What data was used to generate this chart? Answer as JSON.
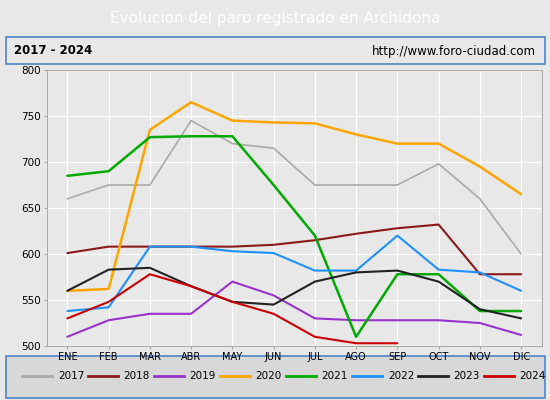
{
  "title": "Evolucion del paro registrado en Archidona",
  "subtitle_left": "2017 - 2024",
  "subtitle_right": "http://www.foro-ciudad.com",
  "title_bg_color": "#4a86c8",
  "title_text_color": "#ffffff",
  "months": [
    "ENE",
    "FEB",
    "MAR",
    "ABR",
    "MAY",
    "JUN",
    "JUL",
    "AGO",
    "SEP",
    "OCT",
    "NOV",
    "DIC"
  ],
  "ylim": [
    500,
    800
  ],
  "yticks": [
    500,
    550,
    600,
    650,
    700,
    750,
    800
  ],
  "series": {
    "2017": {
      "color": "#aaaaaa",
      "linewidth": 1.2,
      "values": [
        660,
        675,
        675,
        745,
        720,
        715,
        675,
        675,
        675,
        698,
        660,
        600
      ]
    },
    "2018": {
      "color": "#8b1a1a",
      "linewidth": 1.5,
      "values": [
        601,
        608,
        608,
        608,
        608,
        610,
        615,
        622,
        628,
        632,
        578,
        578
      ]
    },
    "2019": {
      "color": "#9932cc",
      "linewidth": 1.5,
      "values": [
        510,
        528,
        535,
        535,
        570,
        555,
        530,
        528,
        528,
        528,
        525,
        512
      ]
    },
    "2020": {
      "color": "#ffa500",
      "linewidth": 1.8,
      "values": [
        560,
        562,
        735,
        765,
        745,
        743,
        742,
        730,
        720,
        720,
        695,
        665
      ]
    },
    "2021": {
      "color": "#00aa00",
      "linewidth": 1.8,
      "values": [
        685,
        690,
        727,
        728,
        728,
        675,
        620,
        510,
        578,
        578,
        538,
        538
      ]
    },
    "2022": {
      "color": "#1e90ff",
      "linewidth": 1.5,
      "values": [
        538,
        542,
        608,
        608,
        603,
        601,
        582,
        582,
        620,
        583,
        580,
        560
      ]
    },
    "2023": {
      "color": "#222222",
      "linewidth": 1.5,
      "values": [
        560,
        583,
        585,
        565,
        548,
        545,
        570,
        580,
        582,
        570,
        540,
        530
      ]
    },
    "2024": {
      "color": "#cc0000",
      "linewidth": 1.5,
      "values": [
        530,
        548,
        578,
        565,
        548,
        535,
        510,
        503,
        503,
        null,
        null,
        null
      ]
    }
  },
  "legend_order": [
    "2017",
    "2018",
    "2019",
    "2020",
    "2021",
    "2022",
    "2023",
    "2024"
  ],
  "chart_bg": "#e8e8e8",
  "plot_bg": "#e8e8e8",
  "grid_color": "#ffffff",
  "border_color": "#4a86c8"
}
